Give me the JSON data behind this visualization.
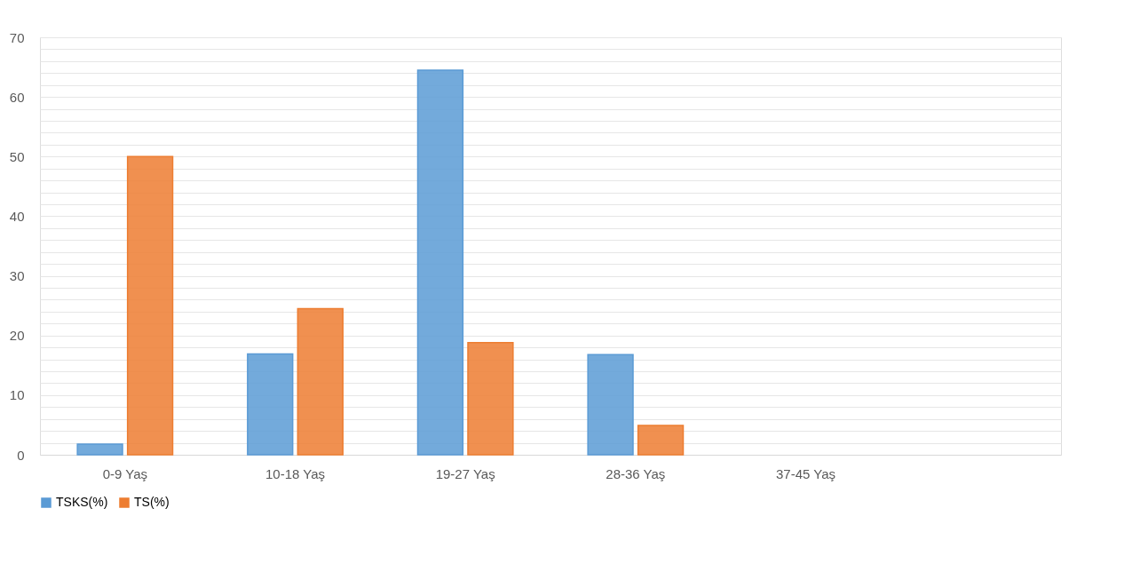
{
  "chart_data": {
    "type": "bar",
    "categories": [
      "0-9 Yaş",
      "10-18 Yaş",
      "19-27 Yaş",
      "28-36 Yaş",
      "37-45 Yaş",
      null
    ],
    "series": [
      {
        "name": "TSKS(%)",
        "color": "#5b9bd5",
        "values": [
          1.8,
          16.9,
          64.5,
          16.8,
          null,
          null
        ]
      },
      {
        "name": "TS(%)",
        "color": "#ed7d31",
        "values": [
          50,
          24.5,
          18.8,
          4.9,
          null,
          null
        ]
      }
    ],
    "ylim": [
      0,
      70
    ],
    "yticks": [
      0,
      {
        "value": 2,
        "label": null
      },
      {
        "value": 4,
        "label": null
      },
      {
        "value": 6,
        "label": null
      },
      {
        "value": 8,
        "label": null
      },
      10,
      {
        "value": 12,
        "label": null
      },
      {
        "value": 14,
        "label": null
      },
      {
        "value": 16,
        "label": null
      },
      {
        "value": 18,
        "label": null
      },
      20,
      {
        "value": 22,
        "label": null
      },
      {
        "value": 24,
        "label": null
      },
      {
        "value": 26,
        "label": null
      },
      {
        "value": 28,
        "label": null
      },
      30,
      {
        "value": 32,
        "label": null
      },
      {
        "value": 34,
        "label": null
      },
      {
        "value": 36,
        "label": null
      },
      {
        "value": 38,
        "label": null
      },
      40,
      {
        "value": 42,
        "label": null
      },
      {
        "value": 44,
        "label": null
      },
      {
        "value": 46,
        "label": null
      },
      {
        "value": 48,
        "label": null
      },
      50,
      {
        "value": 52,
        "label": null
      },
      {
        "value": 54,
        "label": null
      },
      {
        "value": 56,
        "label": null
      },
      {
        "value": 58,
        "label": null
      },
      60,
      {
        "value": 62,
        "label": null
      },
      {
        "value": 64,
        "label": null
      },
      {
        "value": 66,
        "label": null
      },
      {
        "value": 68,
        "label": null
      },
      70
    ],
    "grid": "y",
    "legend": "bottom"
  }
}
